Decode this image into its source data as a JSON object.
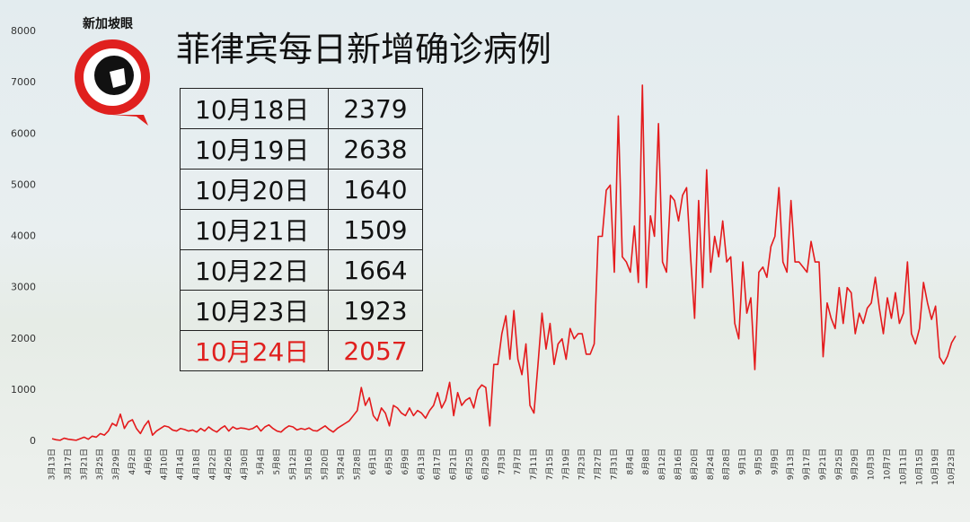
{
  "brand": "新加坡眼",
  "table": {
    "rows": [
      [
        "10月18日",
        "2379"
      ],
      [
        "10月19日",
        "2638"
      ],
      [
        "10月20日",
        "1640"
      ],
      [
        "10月21日",
        "1509"
      ],
      [
        "10月22日",
        "1664"
      ],
      [
        "10月23日",
        "1923"
      ],
      [
        "10月24日",
        "2057"
      ]
    ]
  },
  "chart_data": {
    "type": "line",
    "title": "菲律宾每日新增确诊病例",
    "ylim": [
      0,
      8000
    ],
    "yticks": [
      0,
      1000,
      2000,
      3000,
      4000,
      5000,
      6000,
      7000,
      8000
    ],
    "categories": [
      "3月13日",
      null,
      null,
      null,
      "3月17日",
      null,
      null,
      null,
      "3月21日",
      null,
      null,
      null,
      "3月25日",
      null,
      null,
      null,
      "3月29日",
      null,
      null,
      null,
      "4月2日",
      null,
      null,
      null,
      "4月6日",
      null,
      null,
      null,
      "4月10日",
      null,
      null,
      null,
      "4月14日",
      null,
      null,
      null,
      "4月18日",
      null,
      null,
      null,
      "4月22日",
      null,
      null,
      null,
      "4月26日",
      null,
      null,
      null,
      "4月30日",
      null,
      null,
      null,
      "5月4日",
      null,
      null,
      null,
      "5月8日",
      null,
      null,
      null,
      "5月12日",
      null,
      null,
      null,
      "5月16日",
      null,
      null,
      null,
      "5月20日",
      null,
      null,
      null,
      "5月24日",
      null,
      null,
      null,
      "5月28日",
      null,
      null,
      null,
      "6月1日",
      null,
      null,
      null,
      "6月5日",
      null,
      null,
      null,
      "6月9日",
      null,
      null,
      null,
      "6月13日",
      null,
      null,
      null,
      "6月17日",
      null,
      null,
      null,
      "6月21日",
      null,
      null,
      null,
      "6月25日",
      null,
      null,
      null,
      "6月29日",
      null,
      null,
      null,
      "7月3日",
      null,
      null,
      null,
      "7月7日",
      null,
      null,
      null,
      "7月11日",
      null,
      null,
      null,
      "7月15日",
      null,
      null,
      null,
      "7月19日",
      null,
      null,
      null,
      "7月23日",
      null,
      null,
      null,
      "7月27日",
      null,
      null,
      null,
      "7月31日",
      null,
      null,
      null,
      "8月4日",
      null,
      null,
      null,
      "8月8日",
      null,
      null,
      null,
      "8月12日",
      null,
      null,
      null,
      "8月16日",
      null,
      null,
      null,
      "8月20日",
      null,
      null,
      null,
      "8月24日",
      null,
      null,
      null,
      "8月28日",
      null,
      null,
      null,
      "9月1日",
      null,
      null,
      null,
      "9月5日",
      null,
      null,
      null,
      "9月9日",
      null,
      null,
      null,
      "9月13日",
      null,
      null,
      null,
      "9月17日",
      null,
      null,
      null,
      "9月21日",
      null,
      null,
      null,
      "9月25日",
      null,
      null,
      null,
      "9月29日",
      null,
      null,
      null,
      "10月3日",
      null,
      null,
      null,
      "10月7日",
      null,
      null,
      null,
      "10月11日",
      null,
      null,
      null,
      "10月15日",
      null,
      null,
      null,
      "10月19日",
      null,
      null,
      null,
      "10月23日",
      null
    ],
    "series": [
      {
        "color": "#e41a1c",
        "values": [
          50,
          30,
          20,
          60,
          40,
          30,
          20,
          50,
          80,
          40,
          100,
          80,
          150,
          120,
          200,
          350,
          300,
          530,
          250,
          380,
          420,
          250,
          150,
          300,
          400,
          120,
          200,
          250,
          300,
          280,
          220,
          200,
          250,
          230,
          200,
          220,
          180,
          250,
          200,
          280,
          220,
          180,
          250,
          300,
          200,
          280,
          240,
          260,
          250,
          230,
          250,
          300,
          200,
          280,
          320,
          250,
          200,
          180,
          250,
          300,
          280,
          220,
          250,
          230,
          260,
          210,
          200,
          250,
          300,
          230,
          180,
          250,
          300,
          350,
          400,
          500,
          600,
          1050,
          700,
          850,
          500,
          400,
          650,
          550,
          300,
          700,
          650,
          550,
          500,
          650,
          500,
          600,
          550,
          450,
          600,
          700,
          950,
          650,
          800,
          1150,
          500,
          950,
          700,
          800,
          850,
          650,
          1000,
          1100,
          1050,
          300,
          1500,
          1500,
          2100,
          2450,
          1600,
          2550,
          1600,
          1300,
          1900,
          700,
          550,
          1500,
          2500,
          1800,
          2300,
          1500,
          1900,
          2000,
          1600,
          2200,
          2000,
          2100,
          2100,
          1700,
          1700,
          1900,
          4000,
          4000,
          4900,
          5000,
          3300,
          6350,
          3600,
          3500,
          3300,
          4200,
          3100,
          6950,
          3000,
          4400,
          4000,
          6200,
          3500,
          3300,
          4800,
          4700,
          4300,
          4800,
          4950,
          3600,
          2400,
          4700,
          3000,
          5300,
          3300,
          4000,
          3600,
          4300,
          3500,
          3600,
          2300,
          2000,
          3500,
          2500,
          2800,
          1400,
          3300,
          3400,
          3200,
          3800,
          4000,
          4950,
          3500,
          3300,
          4700,
          3500,
          3500,
          3400,
          3300,
          3900,
          3500,
          3500,
          1650,
          2700,
          2400,
          2200,
          3000,
          2300,
          3000,
          2900,
          2100,
          2500,
          2300,
          2600,
          2700,
          3200,
          2600,
          2100,
          2800,
          2400,
          2900,
          2300,
          2500,
          3500,
          2100,
          1900,
          2200,
          3100,
          2700,
          2379,
          2638,
          1640,
          1509,
          1664,
          1923,
          2057
        ]
      }
    ]
  }
}
